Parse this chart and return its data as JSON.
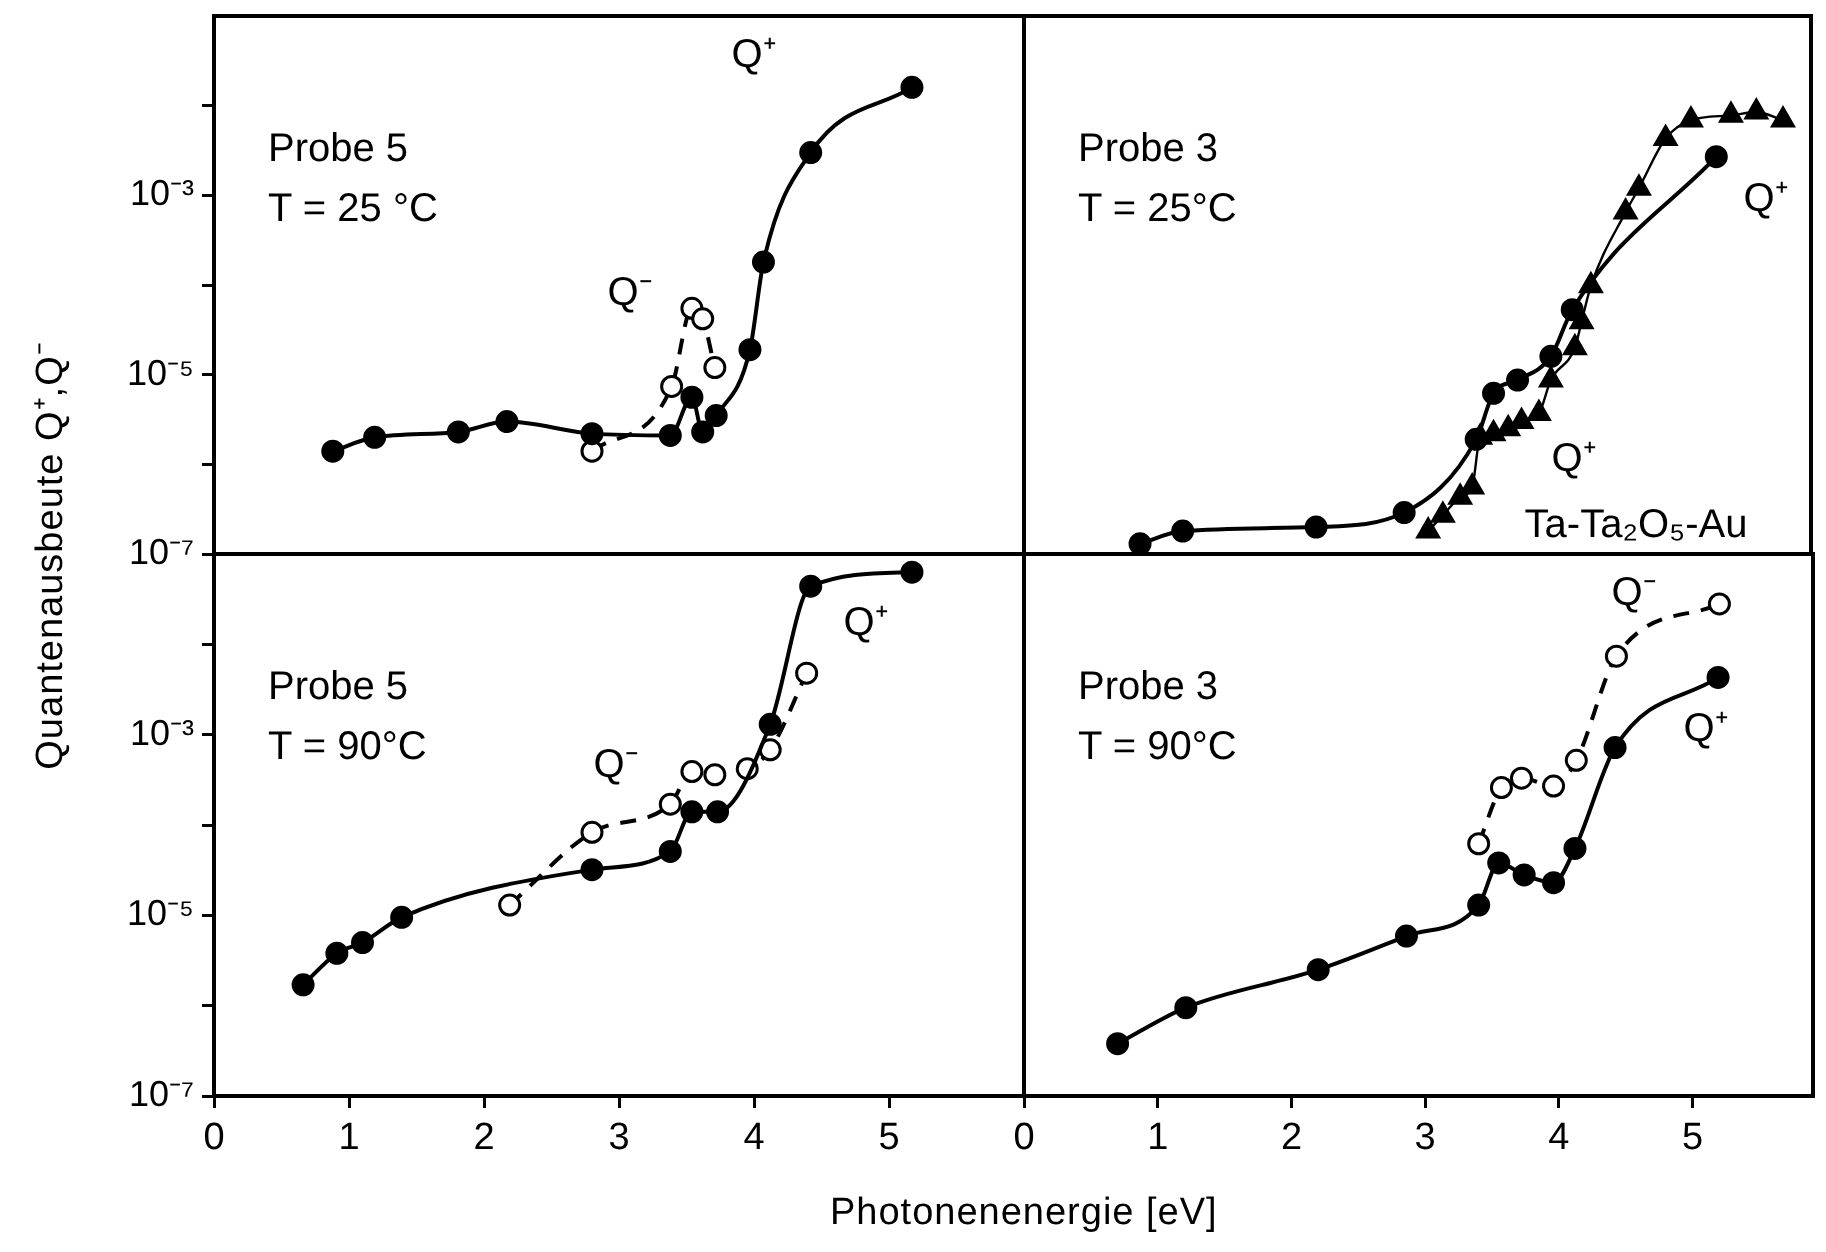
{
  "chart_data": [
    {
      "type": "line",
      "ylabel": "Quantenausbeute Q⁺,Q⁻",
      "log": "y",
      "xlim": [
        0,
        6
      ],
      "xticks": [
        0,
        1,
        2,
        3,
        4,
        5
      ],
      "ylim": [
        1e-07,
        0.1
      ],
      "yticks": [
        {
          "value": 1e-07,
          "label": "10⁻⁷"
        },
        {
          "value": 1e-06,
          "label": null
        },
        {
          "value": 1e-05,
          "label": "10⁻⁵"
        },
        {
          "value": 0.0001,
          "label": null
        },
        {
          "value": 0.001,
          "label": "10⁻³"
        },
        {
          "value": 0.01,
          "label": null
        }
      ],
      "tick_labels": "y",
      "annotations": [
        "Probe 5",
        "T = 25 °C",
        "Q⁺",
        "Q⁻"
      ],
      "series": [
        {
          "color": "#000000",
          "marker": "circle",
          "line_style": "solid",
          "x": [
            0.88,
            1.19,
            1.81,
            2.17,
            2.8,
            3.38,
            3.54,
            3.62,
            3.72,
            3.97,
            4.07,
            4.42,
            5.17
          ],
          "values": [
            1.4e-06,
            2e-06,
            2.3e-06,
            3e-06,
            2.2e-06,
            2.1e-06,
            5.6e-06,
            2.3e-06,
            3.5e-06,
            1.9e-05,
            0.00018,
            0.003,
            0.016
          ]
        },
        {
          "color": "#000000",
          "marker": "circle",
          "line_style": "dashed",
          "x": [
            2.8,
            3.39,
            3.54,
            3.62,
            3.71
          ],
          "values": [
            1.4e-06,
            7.4e-06,
            5.5e-05,
            4.2e-05,
            1.2e-05
          ]
        }
      ]
    },
    {
      "type": "line",
      "log": "y",
      "xlim": [
        0,
        5.9
      ],
      "xticks": [
        0,
        1,
        2,
        3,
        4,
        5
      ],
      "ylim": [
        1e-07,
        0.1
      ],
      "yticks": [
        {
          "value": 1e-07,
          "label": null
        },
        {
          "value": 1e-05,
          "label": null
        },
        {
          "value": 0.001,
          "label": null
        }
      ],
      "tick_labels": false,
      "annotations": [
        "Probe 3",
        "T = 25°C",
        "Q⁺",
        "Q⁺",
        "Ta-Ta₂O₅-Au"
      ],
      "series": [
        {
          "color": "#000000",
          "marker": "circle",
          "line_style": "solid",
          "x": [
            0.87,
            1.19,
            2.19,
            2.85,
            3.39,
            3.52,
            3.7,
            3.95,
            4.11,
            5.19
          ],
          "values": [
            1.3e-07,
            1.8e-07,
            2e-07,
            2.9e-07,
            1.9e-06,
            6.2e-06,
            8.7e-06,
            1.6e-05,
            5.3e-05,
            0.0027
          ]
        },
        {
          "color": "#000000",
          "marker": "triangle",
          "line_style": "solid",
          "x": [
            3.03,
            3.14,
            3.27,
            3.36,
            3.42,
            3.52,
            3.63,
            3.73,
            3.86,
            3.95,
            4.13,
            4.18,
            4.25,
            4.51,
            4.61,
            4.81,
            5.0,
            5.3,
            5.49,
            5.69
          ],
          "values": [
            1.8e-07,
            2.7e-07,
            4.3e-07,
            5.6e-07,
            2e-06,
            2.2e-06,
            2.5e-06,
            3e-06,
            3.7e-06,
            8.7e-06,
            2e-05,
            3.9e-05,
            9.8e-05,
            0.00065,
            0.0012,
            0.0043,
            0.0069,
            0.0078,
            0.0085,
            0.0069
          ]
        }
      ]
    },
    {
      "type": "line",
      "xlabel": "Photonenenergie [eV]",
      "log": "y",
      "xlim": [
        0,
        6
      ],
      "xticks": [
        0,
        1,
        2,
        3,
        4,
        5
      ],
      "ylim": [
        1e-07,
        0.1
      ],
      "yticks": [
        {
          "value": 1e-07,
          "label": "10⁻⁷"
        },
        {
          "value": 1e-06,
          "label": null
        },
        {
          "value": 1e-05,
          "label": "10⁻⁵"
        },
        {
          "value": 0.0001,
          "label": null
        },
        {
          "value": 0.001,
          "label": "10⁻³"
        },
        {
          "value": 0.01,
          "label": null
        }
      ],
      "annotations": [
        "Probe 5",
        "T = 90°C",
        "Q⁺",
        "Q⁻"
      ],
      "series": [
        {
          "color": "#000000",
          "marker": "circle",
          "line_style": "solid",
          "x": [
            0.66,
            0.91,
            1.1,
            1.39,
            2.8,
            3.38,
            3.54,
            3.73,
            4.12,
            4.42,
            5.17
          ],
          "values": [
            1.7e-06,
            3.8e-06,
            5e-06,
            9.5e-06,
            3.2e-05,
            5.1e-05,
            0.00014,
            0.00014,
            0.0013,
            0.044,
            0.063
          ]
        },
        {
          "color": "#000000",
          "marker": "circle",
          "line_style": "dashed",
          "x": [
            2.19,
            2.8,
            3.38,
            3.54,
            3.71,
            3.95,
            4.12,
            4.39
          ],
          "values": [
            1.3e-05,
            8.3e-05,
            0.00017,
            0.00039,
            0.00036,
            0.00042,
            0.00068,
            0.0048
          ]
        }
      ]
    },
    {
      "type": "line",
      "log": "y",
      "xlim": [
        0,
        5.9
      ],
      "xticks": [
        0,
        1,
        2,
        3,
        4,
        5
      ],
      "ylim": [
        1e-07,
        0.1
      ],
      "yticks": [
        {
          "value": 1e-07,
          "label": null
        },
        {
          "value": 1e-05,
          "label": null
        },
        {
          "value": 0.001,
          "label": null
        }
      ],
      "tick_labels": "x",
      "annotations": [
        "Probe 3",
        "T = 90°C",
        "Q⁻",
        "Q⁺"
      ],
      "series": [
        {
          "color": "#000000",
          "marker": "circle",
          "line_style": "solid",
          "x": [
            0.7,
            1.21,
            2.2,
            2.86,
            3.4,
            3.55,
            3.74,
            3.96,
            4.12,
            4.42,
            5.19
          ],
          "values": [
            3.8e-07,
            9.5e-07,
            2.5e-06,
            5.9e-06,
            1.3e-05,
            3.8e-05,
            2.8e-05,
            2.3e-05,
            5.5e-05,
            0.00072,
            0.0043
          ]
        },
        {
          "color": "#000000",
          "marker": "circle",
          "line_style": "dashed",
          "x": [
            3.4,
            3.57,
            3.72,
            3.96,
            4.13,
            4.43,
            5.2
          ],
          "values": [
            6.2e-05,
            0.00026,
            0.00033,
            0.00027,
            0.00052,
            0.0074,
            0.028
          ]
        }
      ]
    }
  ]
}
